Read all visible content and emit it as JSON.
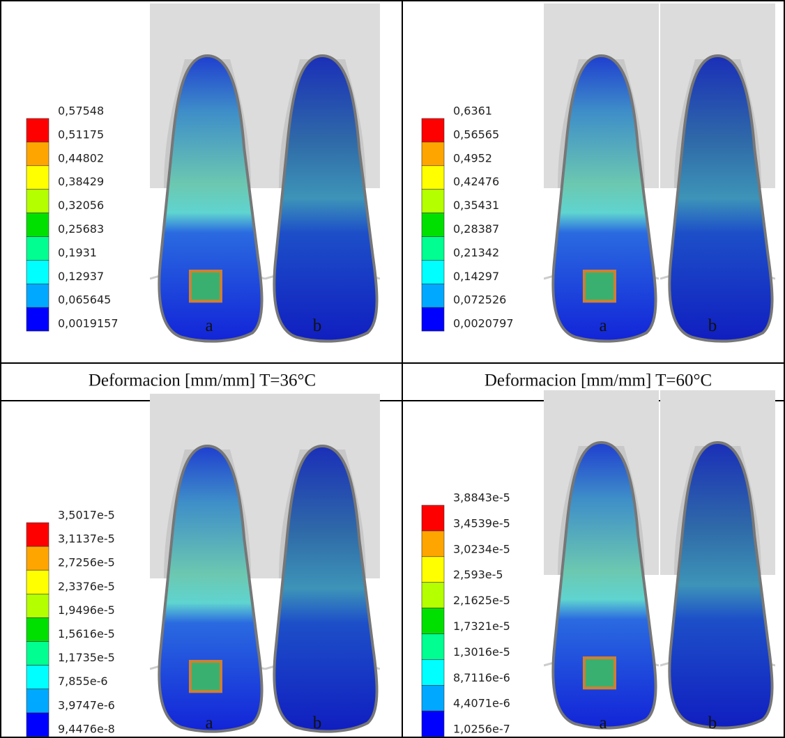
{
  "panels": [
    {
      "legend": [
        "0,57548",
        "0,51175",
        "0,44802",
        "0,38429",
        "0,32056",
        "0,25683",
        "0,1931",
        "0,12937",
        "0,065645",
        "0,0019157"
      ],
      "labels": [
        "a",
        "b"
      ]
    },
    {
      "legend": [
        "0,6361",
        "0,56565",
        "0,4952",
        "0,42476",
        "0,35431",
        "0,28387",
        "0,21342",
        "0,14297",
        "0,072526",
        "0,0020797"
      ],
      "labels": [
        "a",
        "b"
      ]
    },
    {
      "legend": [
        "3,5017e-5",
        "3,1137e-5",
        "2,7256e-5",
        "2,3376e-5",
        "1,9496e-5",
        "1,5616e-5",
        "1,1735e-5",
        "7,855e-6",
        "3,9747e-6",
        "9,4476e-8"
      ],
      "labels": [
        "a",
        "b"
      ]
    },
    {
      "legend": [
        "3,8843e-5",
        "3,4539e-5",
        "3,0234e-5",
        "2,593e-5",
        "2,1625e-5",
        "1,7321e-5",
        "1,3016e-5",
        "8,7116e-6",
        "4,4071e-6",
        "1,0256e-7"
      ],
      "labels": [
        "a",
        "b"
      ]
    }
  ],
  "captions": [
    "Deformacion [mm/mm] T=36°C",
    "Deformacion [mm/mm] T=60°C"
  ]
}
